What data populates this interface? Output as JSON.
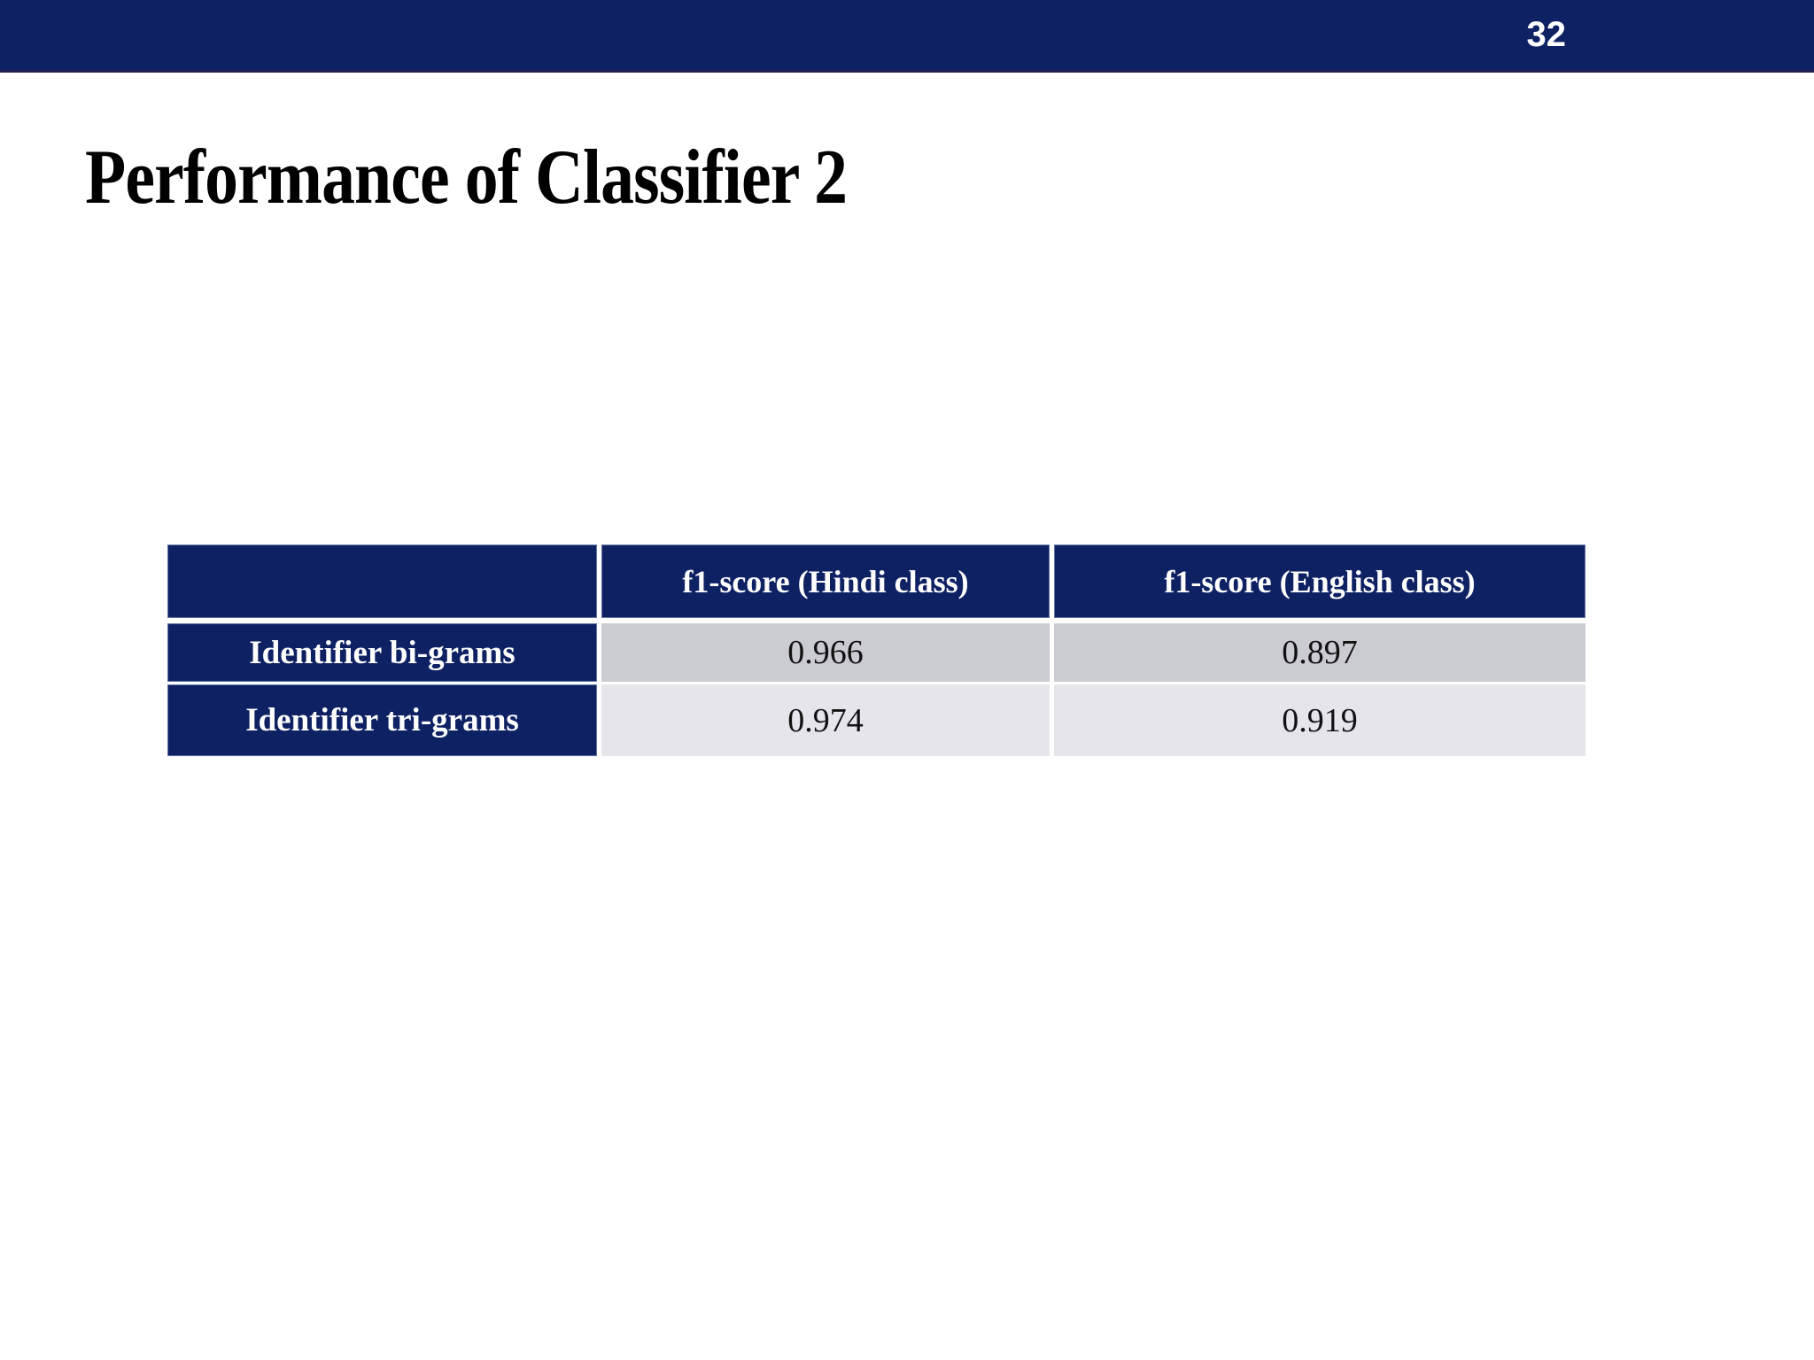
{
  "page": {
    "number": "32"
  },
  "title": "Performance of Classifier 2",
  "table": {
    "columns": [
      "",
      "f1-score (Hindi class)",
      "f1-score (English class)"
    ],
    "rows": [
      {
        "label": "Identifier bi-grams",
        "values": [
          "0.966",
          "0.897"
        ]
      },
      {
        "label": "Identifier tri-grams",
        "values": [
          "0.974",
          "0.919"
        ]
      }
    ]
  },
  "colors": {
    "navy": "#0E2163",
    "row1_bg": "#CBCBD2",
    "row2_bg": "#E6E5EA",
    "header_text": "#FFFFFF",
    "value_text": "#121212"
  }
}
